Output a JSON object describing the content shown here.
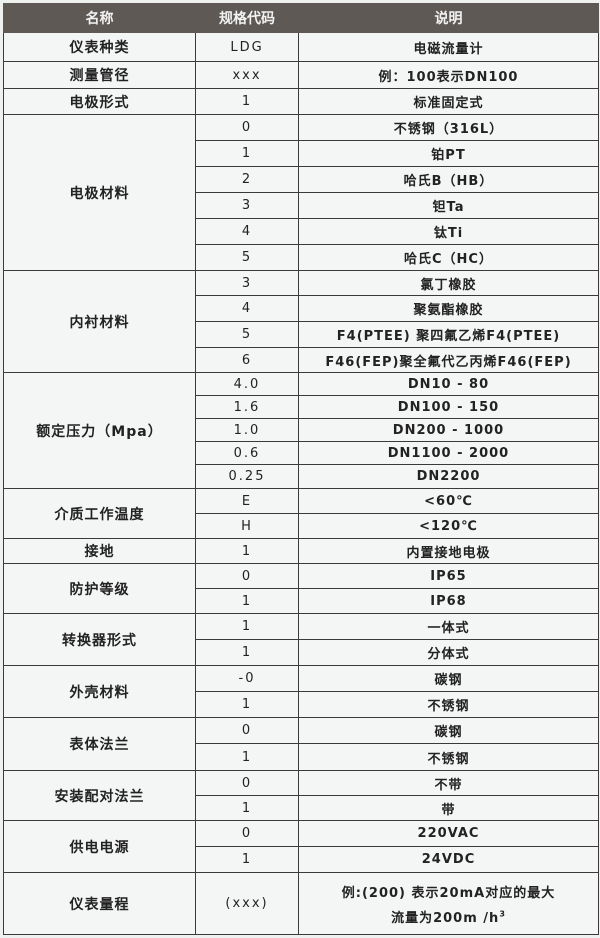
{
  "header": {
    "name": "名称",
    "code": "规格代码",
    "desc": "说明"
  },
  "groups": [
    {
      "name": "仪表种类",
      "rows": [
        {
          "code": "LDG",
          "desc": "电磁流量计"
        }
      ]
    },
    {
      "name": "测量管径",
      "rows": [
        {
          "code": "xxx",
          "desc": "例：100表示DN100"
        }
      ]
    },
    {
      "name": "电极形式",
      "rows": [
        {
          "code": "1",
          "desc": "标准固定式"
        }
      ]
    },
    {
      "name": "电极材料",
      "rows": [
        {
          "code": "0",
          "desc": "不锈钢（316L）"
        },
        {
          "code": "1",
          "desc": "铂PT"
        },
        {
          "code": "2",
          "desc": "哈氏B（HB）"
        },
        {
          "code": "3",
          "desc": "钽Ta"
        },
        {
          "code": "4",
          "desc": "钛Ti"
        },
        {
          "code": "5",
          "desc": "哈氏C（HC）"
        }
      ]
    },
    {
      "name": "内衬材料",
      "rows": [
        {
          "code": "3",
          "desc": "氯丁橡胶"
        },
        {
          "code": "4",
          "desc": "聚氨酯橡胶"
        },
        {
          "code": "5",
          "desc": "F4(PTEE) 聚四氟乙烯F4(PTEE)"
        },
        {
          "code": "6",
          "desc": "F46(FEP)聚全氟代乙丙烯F46(FEP)"
        }
      ]
    },
    {
      "name": "额定压力（Mpa）",
      "rows": [
        {
          "code": "4.0",
          "desc": "DN10 - 80"
        },
        {
          "code": "1.6",
          "desc": "DN100 - 150"
        },
        {
          "code": "1.0",
          "desc": "DN200 - 1000"
        },
        {
          "code": "0.6",
          "desc": "DN1100 - 2000"
        },
        {
          "code": "0.25",
          "desc": "DN2200"
        }
      ]
    },
    {
      "name": "介质工作温度",
      "rows": [
        {
          "code": "E",
          "desc": "<60℃"
        },
        {
          "code": "H",
          "desc": "<120℃"
        }
      ]
    },
    {
      "name": "接地",
      "rows": [
        {
          "code": "1",
          "desc": "内置接地电极"
        }
      ]
    },
    {
      "name": "防护等级",
      "rows": [
        {
          "code": "0",
          "desc": "IP65"
        },
        {
          "code": "1",
          "desc": "IP68"
        }
      ]
    },
    {
      "name": "转换器形式",
      "rows": [
        {
          "code": "1",
          "desc": "一体式"
        },
        {
          "code": "1",
          "desc": "分体式"
        }
      ]
    },
    {
      "name": "外壳材料",
      "rows": [
        {
          "code": "-0",
          "desc": "碳钢"
        },
        {
          "code": "1",
          "desc": "不锈钢"
        }
      ]
    },
    {
      "name": "表体法兰",
      "rows": [
        {
          "code": "0",
          "desc": "碳钢"
        },
        {
          "code": "1",
          "desc": "不锈钢"
        }
      ]
    },
    {
      "name": "安装配对法兰",
      "rows": [
        {
          "code": "0",
          "desc": "不带"
        },
        {
          "code": "1",
          "desc": "带"
        }
      ]
    },
    {
      "name": "供电电源",
      "rows": [
        {
          "code": "0",
          "desc": "220VAC"
        },
        {
          "code": "1",
          "desc": "24VDC"
        }
      ]
    },
    {
      "name": "仪表量程",
      "rows": [
        {
          "code": "(xxx)",
          "desc": "例:(200) 表示20mA对应的最大",
          "desc2": "流量为200m /h",
          "sup": "3"
        }
      ]
    }
  ]
}
